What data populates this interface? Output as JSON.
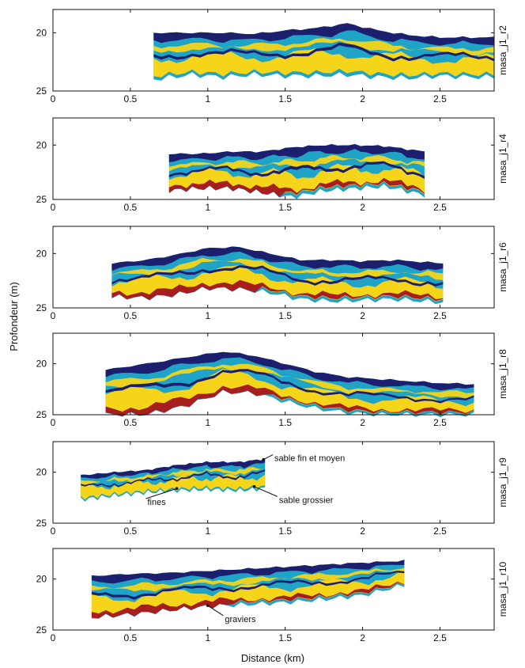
{
  "figure": {
    "ylabel": "Profondeur (m)",
    "xlabel": "Distance (km)"
  },
  "colors": {
    "dark_blue": "#1c1f6e",
    "light_blue": "#1fa4c8",
    "yellow": "#f5d51a",
    "red": "#a81e1e",
    "background": "#ffffff",
    "axis": "#111111"
  },
  "chart_data": [
    {
      "type": "heatmap",
      "panel_label": "masa_j1_r2",
      "xlim": [
        0,
        2.85
      ],
      "ylim": [
        18,
        25
      ],
      "xticks": [
        "0",
        "0.5",
        "1",
        "1.5",
        "2",
        "2.5"
      ],
      "xtick_values": [
        0,
        0.5,
        1,
        1.5,
        2,
        2.5
      ],
      "yticks": [
        "20",
        "25"
      ],
      "ytick_values": [
        20,
        25
      ],
      "x": [
        0.65,
        0.9,
        1.1,
        1.3,
        1.5,
        1.7,
        1.9,
        2.1,
        2.3,
        2.5,
        2.7,
        2.85
      ],
      "top": [
        20.0,
        20.0,
        20.0,
        20.1,
        19.8,
        19.6,
        19.2,
        19.8,
        20.2,
        20.4,
        20.4,
        20.4
      ],
      "bottom": [
        24.0,
        23.6,
        23.8,
        23.6,
        23.7,
        23.7,
        23.6,
        23.8,
        23.9,
        23.7,
        23.8,
        23.8
      ],
      "facies": [
        "dark_blue",
        "light_blue",
        "yellow"
      ],
      "annotations": []
    },
    {
      "type": "heatmap",
      "panel_label": "masa_j1_r4",
      "xlim": [
        0,
        2.85
      ],
      "ylim": [
        17.5,
        25
      ],
      "xticks": [
        "0",
        "0.5",
        "1",
        "1.5",
        "2",
        "2.5"
      ],
      "xtick_values": [
        0,
        0.5,
        1,
        1.5,
        2,
        2.5
      ],
      "yticks": [
        "20",
        "25"
      ],
      "ytick_values": [
        20,
        25
      ],
      "x": [
        0.75,
        0.95,
        1.15,
        1.35,
        1.55,
        1.75,
        1.95,
        2.15,
        2.4
      ],
      "top": [
        20.8,
        20.8,
        20.6,
        20.6,
        20.2,
        20.0,
        20.0,
        20.1,
        20.6
      ],
      "bottom": [
        24.2,
        24.0,
        24.0,
        24.4,
        24.8,
        24.2,
        24.0,
        23.8,
        24.6
      ],
      "facies": [
        "dark_blue",
        "light_blue",
        "yellow",
        "red"
      ],
      "annotations": []
    },
    {
      "type": "heatmap",
      "panel_label": "masa_j1_r6",
      "xlim": [
        0,
        2.85
      ],
      "ylim": [
        17.5,
        25
      ],
      "xticks": [
        "0",
        "0.5",
        "1",
        "1.5",
        "2",
        "2.5"
      ],
      "xtick_values": [
        0,
        0.5,
        1,
        1.5,
        2,
        2.5
      ],
      "yticks": [
        "20",
        "25"
      ],
      "ytick_values": [
        20,
        25
      ],
      "x": [
        0.38,
        0.6,
        0.8,
        1.0,
        1.2,
        1.4,
        1.6,
        1.8,
        2.0,
        2.2,
        2.52
      ],
      "top": [
        20.9,
        20.6,
        20.1,
        19.5,
        19.4,
        20.0,
        20.6,
        20.6,
        20.7,
        20.6,
        20.9
      ],
      "bottom": [
        24.0,
        24.1,
        23.8,
        23.2,
        23.3,
        23.6,
        24.2,
        24.4,
        24.3,
        24.2,
        24.5
      ],
      "facies": [
        "dark_blue",
        "light_blue",
        "yellow",
        "red"
      ],
      "annotations": []
    },
    {
      "type": "heatmap",
      "panel_label": "masa_j1_r8",
      "xlim": [
        0,
        2.85
      ],
      "ylim": [
        17,
        25
      ],
      "xticks": [
        "0",
        "0.5",
        "1",
        "1.5",
        "2",
        "2.5"
      ],
      "xtick_values": [
        0,
        0.5,
        1,
        1.5,
        2,
        2.5
      ],
      "yticks": [
        "20",
        "25"
      ],
      "ytick_values": [
        20,
        25
      ],
      "x": [
        0.34,
        0.6,
        0.85,
        1.1,
        1.3,
        1.5,
        1.7,
        1.9,
        2.1,
        2.3,
        2.5,
        2.72
      ],
      "top": [
        20.6,
        20.0,
        19.4,
        18.8,
        19.2,
        20.0,
        20.8,
        21.3,
        21.5,
        21.7,
        21.9,
        22.0
      ],
      "bottom": [
        25.0,
        25.0,
        24.2,
        22.8,
        22.9,
        23.7,
        24.4,
        24.8,
        25.0,
        25.0,
        25.0,
        25.0
      ],
      "facies": [
        "dark_blue",
        "light_blue",
        "yellow",
        "red"
      ],
      "annotations": []
    },
    {
      "type": "heatmap",
      "panel_label": "masa_j1_r9",
      "xlim": [
        0,
        2.85
      ],
      "ylim": [
        17,
        25
      ],
      "xticks": [
        "0",
        "0.5",
        "1",
        "1.5",
        "2",
        "2.5"
      ],
      "xtick_values": [
        0,
        0.5,
        1,
        1.5,
        2,
        2.5
      ],
      "yticks": [
        "20",
        "25"
      ],
      "ytick_values": [
        20,
        25
      ],
      "x": [
        0.18,
        0.4,
        0.6,
        0.8,
        1.0,
        1.2,
        1.37
      ],
      "top": [
        20.3,
        20.0,
        19.8,
        19.3,
        19.0,
        19.0,
        18.7
      ],
      "bottom": [
        22.7,
        22.3,
        22.0,
        21.8,
        21.7,
        21.8,
        21.6
      ],
      "facies": [
        "dark_blue",
        "light_blue",
        "yellow"
      ],
      "annotations": [
        {
          "text": "sable fin et moyen",
          "x": 1.42,
          "y": 18.6,
          "ax": 1.36,
          "ay": 18.75
        },
        {
          "text": "fines",
          "x": 0.6,
          "y": 22.9,
          "ax": 0.8,
          "ay": 21.6
        },
        {
          "text": "sable grossier",
          "x": 1.45,
          "y": 22.7,
          "ax": 1.3,
          "ay": 21.4
        }
      ]
    },
    {
      "type": "heatmap",
      "panel_label": "masa_j1_r10",
      "xlim": [
        0,
        2.85
      ],
      "ylim": [
        17,
        25
      ],
      "xticks": [
        "0",
        "0.5",
        "1",
        "1.5",
        "2",
        "2.5"
      ],
      "xtick_values": [
        0,
        0.5,
        1,
        1.5,
        2,
        2.5
      ],
      "yticks": [
        "20",
        "25"
      ],
      "ytick_values": [
        20,
        25
      ],
      "x": [
        0.25,
        0.5,
        0.75,
        1.0,
        1.25,
        1.5,
        1.75,
        2.0,
        2.27
      ],
      "top": [
        19.7,
        19.5,
        19.4,
        19.2,
        19.0,
        18.8,
        18.6,
        18.4,
        18.2
      ],
      "bottom": [
        23.8,
        23.5,
        23.1,
        22.7,
        22.5,
        22.3,
        22.0,
        21.6,
        20.6
      ],
      "facies": [
        "dark_blue",
        "light_blue",
        "yellow",
        "red"
      ],
      "annotations": [
        {
          "text": "graviers",
          "x": 1.1,
          "y": 23.9,
          "ax": 1.0,
          "ay": 22.6
        }
      ]
    }
  ]
}
